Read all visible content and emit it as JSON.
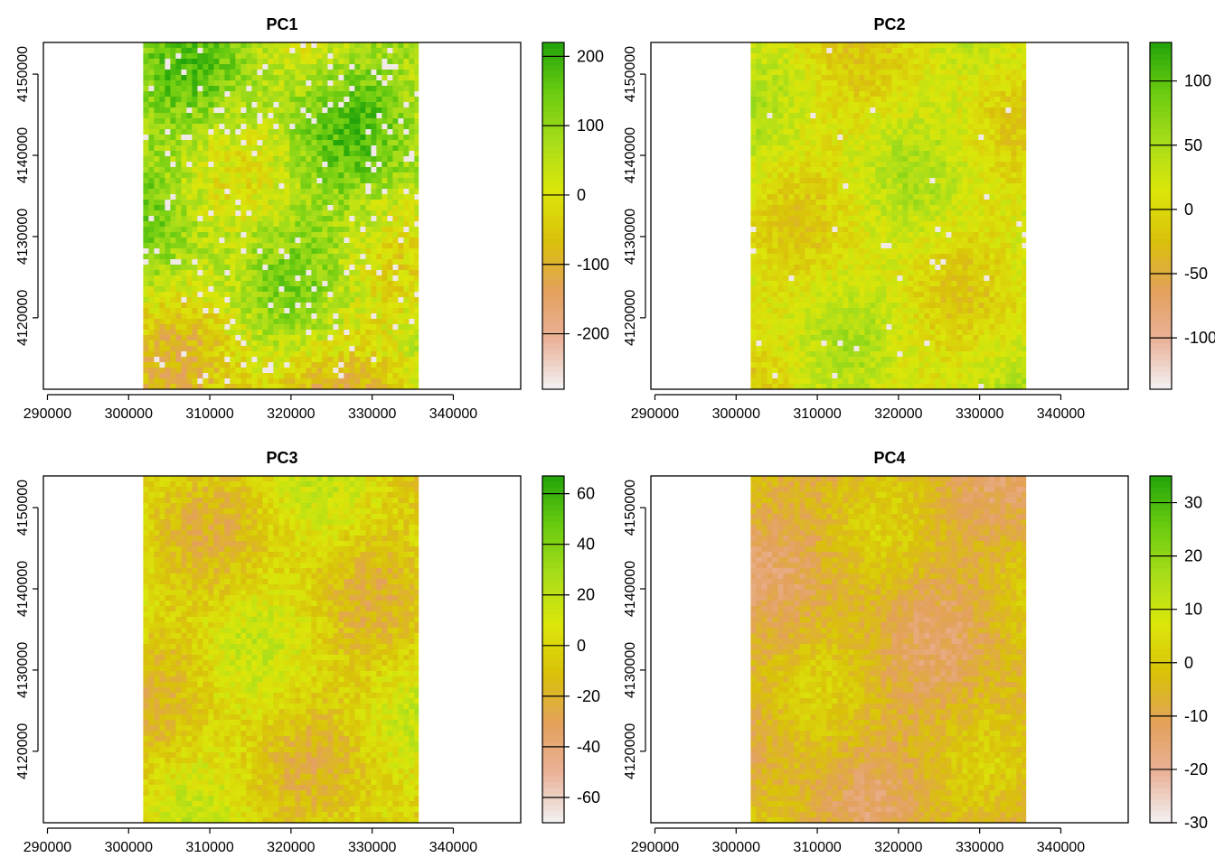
{
  "colors": {
    "ramp": [
      "#f2f2f2",
      "#eab299",
      "#e3a15b",
      "#d9c10a",
      "#dbe60a",
      "#a8dd1a",
      "#6acb10",
      "#22a40a"
    ],
    "raster_edge": "#e2c266"
  },
  "chart_data": [
    {
      "type": "heatmap",
      "title": "PC1",
      "xlabel": "",
      "ylabel": "",
      "x_ticks": [
        "290000",
        "300000",
        "310000",
        "320000",
        "330000",
        "340000"
      ],
      "y_ticks": [
        "4120000",
        "4130000",
        "4140000",
        "4150000"
      ],
      "xlim": [
        289500,
        348300
      ],
      "ylim": [
        4111200,
        4153900
      ],
      "raster_extent": {
        "xmin": 301800,
        "xmax": 335700,
        "ymin": 4111200,
        "ymax": 4153900
      },
      "legend": {
        "ticks": [
          "200",
          "100",
          "0",
          "-100",
          "-200"
        ],
        "tick_values": [
          200,
          100,
          0,
          -100,
          -200
        ],
        "range": [
          -280,
          220
        ]
      },
      "dominant_value": 80,
      "spread": 120,
      "white_speckle": 0.05
    },
    {
      "type": "heatmap",
      "title": "PC2",
      "xlabel": "",
      "ylabel": "",
      "x_ticks": [
        "290000",
        "300000",
        "310000",
        "320000",
        "330000",
        "340000"
      ],
      "y_ticks": [
        "4120000",
        "4130000",
        "4140000",
        "4150000"
      ],
      "xlim": [
        289500,
        348300
      ],
      "ylim": [
        4111200,
        4153900
      ],
      "raster_extent": {
        "xmin": 301800,
        "xmax": 335700,
        "ymin": 4111200,
        "ymax": 4153900
      },
      "legend": {
        "ticks": [
          "100",
          "50",
          "0",
          "-50",
          "-100"
        ],
        "tick_values": [
          100,
          50,
          0,
          -50,
          -100
        ],
        "range": [
          -140,
          130
        ]
      },
      "dominant_value": 15,
      "spread": 45,
      "white_speckle": 0.01
    },
    {
      "type": "heatmap",
      "title": "PC3",
      "xlabel": "",
      "ylabel": "",
      "x_ticks": [
        "290000",
        "300000",
        "310000",
        "320000",
        "330000",
        "340000"
      ],
      "y_ticks": [
        "4120000",
        "4130000",
        "4140000",
        "4150000"
      ],
      "xlim": [
        289500,
        348300
      ],
      "ylim": [
        4111200,
        4153900
      ],
      "raster_extent": {
        "xmin": 301800,
        "xmax": 335700,
        "ymin": 4111200,
        "ymax": 4153900
      },
      "legend": {
        "ticks": [
          "60",
          "40",
          "20",
          "0",
          "-20",
          "-40",
          "-60"
        ],
        "tick_values": [
          60,
          40,
          20,
          0,
          -20,
          -40,
          -60
        ],
        "range": [
          -70,
          67
        ]
      },
      "dominant_value": -2,
      "spread": 25,
      "white_speckle": 0.0
    },
    {
      "type": "heatmap",
      "title": "PC4",
      "xlabel": "",
      "ylabel": "",
      "x_ticks": [
        "290000",
        "300000",
        "310000",
        "320000",
        "330000",
        "340000"
      ],
      "y_ticks": [
        "4120000",
        "4130000",
        "4140000",
        "4150000"
      ],
      "xlim": [
        289500,
        348300
      ],
      "ylim": [
        4111200,
        4153900
      ],
      "raster_extent": {
        "xmin": 301800,
        "xmax": 335700,
        "ymin": 4111200,
        "ymax": 4153900
      },
      "legend": {
        "ticks": [
          "30",
          "20",
          "10",
          "0",
          "-10",
          "-20",
          "-30"
        ],
        "tick_values": [
          30,
          20,
          10,
          0,
          -10,
          -20,
          -30
        ],
        "range": [
          -30,
          35
        ]
      },
      "dominant_value": -6,
      "spread": 10,
      "white_speckle": 0.0
    }
  ]
}
